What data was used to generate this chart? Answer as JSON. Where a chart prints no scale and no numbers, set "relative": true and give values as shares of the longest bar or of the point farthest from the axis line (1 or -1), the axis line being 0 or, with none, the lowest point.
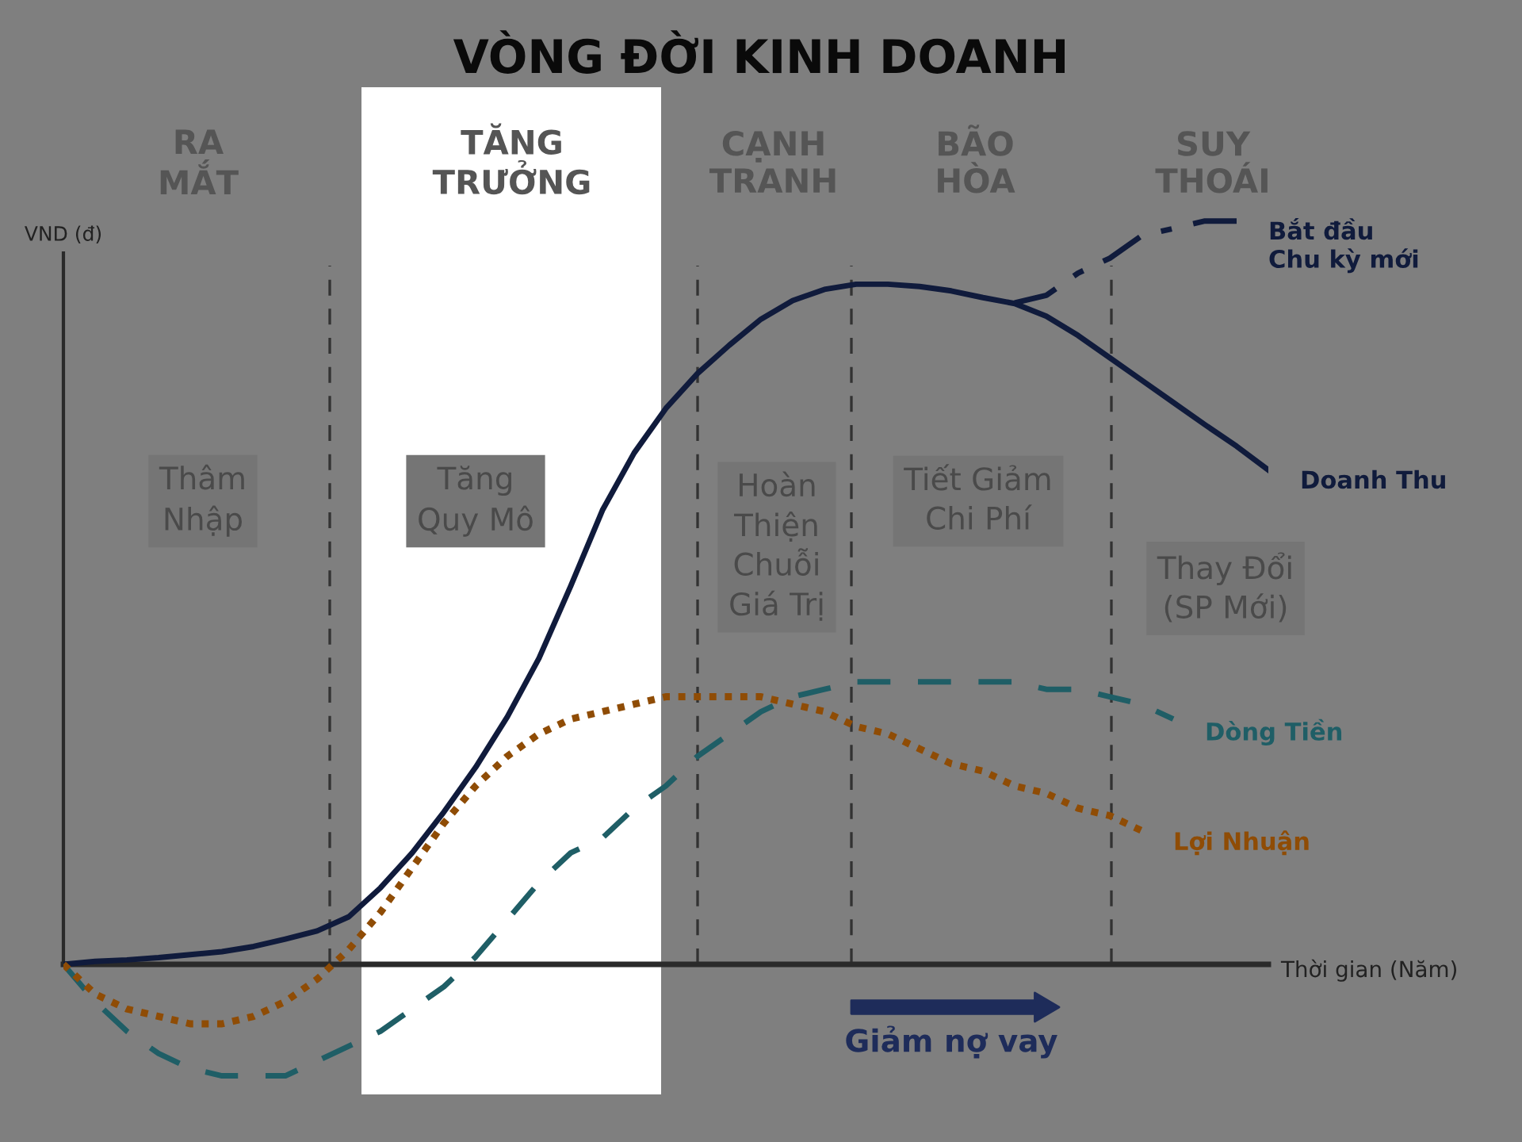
{
  "chart_data": {
    "type": "line",
    "title": "VÒNG ĐỜI KINH DOANH",
    "ylabel": "VND (đ)",
    "xlabel": "Thời gian (Năm)",
    "relative": true,
    "grid": "x",
    "categories": [
      null,
      null,
      null,
      null,
      null,
      null,
      null,
      null,
      null,
      null,
      null,
      null,
      null,
      null,
      null,
      null,
      null,
      null,
      null,
      null,
      null,
      null,
      null,
      null,
      null,
      null,
      null,
      null,
      null,
      null,
      null,
      null,
      null,
      null,
      null,
      null,
      null,
      null,
      null
    ],
    "series": [
      {
        "name": "Doanh Thu",
        "color": "#101b3c",
        "line_style": "solid",
        "values": [
          0,
          0.004,
          0.006,
          0.009,
          0.013,
          0.017,
          0.024,
          0.034,
          0.045,
          0.064,
          0.103,
          0.15,
          0.205,
          0.265,
          0.333,
          0.412,
          0.509,
          0.611,
          0.688,
          0.748,
          0.795,
          0.833,
          0.868,
          0.893,
          0.908,
          0.915,
          0.915,
          0.912,
          0.906,
          0.897,
          0.889,
          0.872,
          0.846,
          0.816,
          0.786,
          0.756,
          0.726,
          0.697,
          0.665
        ]
      },
      {
        "name": "Dòng Tiền",
        "color": "#1f5e66",
        "line_style": "dashed",
        "values": [
          0,
          -0.05,
          -0.09,
          -0.12,
          -0.14,
          -0.15,
          -0.15,
          -0.15,
          -0.13,
          -0.11,
          -0.09,
          -0.06,
          -0.03,
          0.01,
          0.06,
          0.11,
          0.15,
          0.17,
          0.21,
          0.24,
          0.28,
          0.31,
          0.34,
          0.36,
          0.37,
          0.38,
          0.38,
          0.38,
          0.38,
          0.38,
          0.38,
          0.37,
          0.37,
          0.36,
          0.35,
          0.33,
          null,
          null,
          null
        ]
      },
      {
        "name": "Lợi Nhuận",
        "color": "#8f4c05",
        "line_style": "dotted",
        "values": [
          0,
          -0.04,
          -0.06,
          -0.07,
          -0.08,
          -0.08,
          -0.07,
          -0.05,
          -0.02,
          0.02,
          0.07,
          0.13,
          0.19,
          0.24,
          0.28,
          0.31,
          0.33,
          0.34,
          0.35,
          0.36,
          0.36,
          0.36,
          0.36,
          0.35,
          0.34,
          0.32,
          0.31,
          0.29,
          0.27,
          0.26,
          0.24,
          0.23,
          0.21,
          0.2,
          0.18,
          null,
          null,
          null,
          null
        ]
      },
      {
        "name": "Bắt đầu\nChu kỳ mới",
        "color": "#101b3c",
        "line_style": "dashdot",
        "values": [
          null,
          null,
          null,
          null,
          null,
          null,
          null,
          null,
          null,
          null,
          null,
          null,
          null,
          null,
          null,
          null,
          null,
          null,
          null,
          null,
          null,
          null,
          null,
          null,
          null,
          null,
          null,
          null,
          null,
          null,
          0.89,
          0.9,
          0.93,
          0.95,
          0.98,
          0.99,
          1,
          1,
          null
        ]
      }
    ],
    "annotations": [
      "RA\nMẮT",
      "TĂNG\nTRƯỞNG",
      "CẠNH\nTRANH",
      "BÃO\nHÒA",
      "SUY\nTHOÁI",
      "Thâm\nNhập",
      "Tăng\nQuy Mô",
      "Hoàn\nThiện\nChuỗi\nGiá Trị",
      "Tiết Giảm\nChi Phí",
      "Thay Đổi\n(SP Mới)",
      "Giảm nợ vay"
    ]
  }
}
